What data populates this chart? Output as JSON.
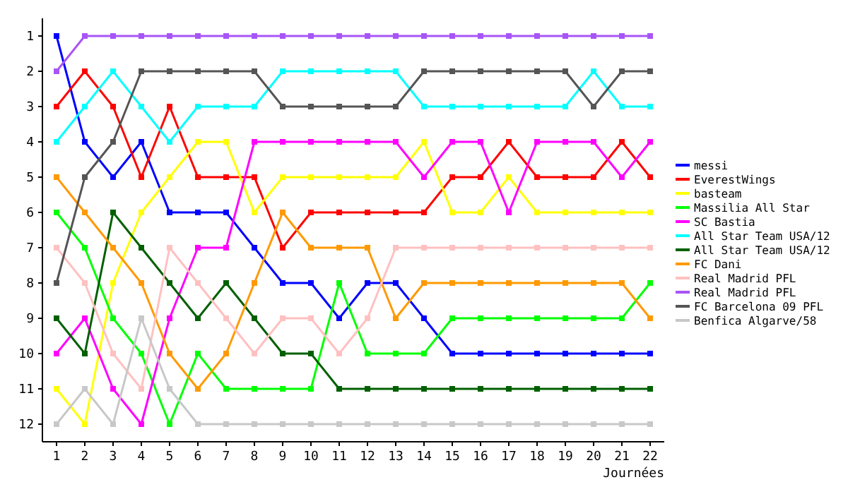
{
  "chart_data": {
    "type": "line",
    "xlabel": "Journées",
    "x": [
      1,
      2,
      3,
      4,
      5,
      6,
      7,
      8,
      9,
      10,
      11,
      12,
      13,
      14,
      15,
      16,
      17,
      18,
      19,
      20,
      21,
      22
    ],
    "xlim": [
      0.5,
      22.5
    ],
    "xticks": [
      1,
      2,
      3,
      4,
      5,
      6,
      7,
      8,
      9,
      10,
      11,
      12,
      13,
      14,
      15,
      16,
      17,
      18,
      19,
      20,
      21,
      22
    ],
    "ylim": [
      12.5,
      0.5
    ],
    "yticks": [
      1,
      2,
      3,
      4,
      5,
      6,
      7,
      8,
      9,
      10,
      11,
      12
    ],
    "grid": false,
    "legend": "right",
    "marker": "square",
    "line_style": "solid",
    "series": [
      {
        "name": "messi",
        "color": "#0000ff",
        "values": [
          1,
          4,
          5,
          4,
          6,
          6,
          6,
          7,
          8,
          8,
          9,
          8,
          8,
          9,
          10,
          10,
          10,
          10,
          10,
          10,
          10,
          10
        ]
      },
      {
        "name": "EverestWings",
        "color": "#ff0000",
        "values": [
          3,
          2,
          3,
          5,
          3,
          5,
          5,
          5,
          7,
          6,
          6,
          6,
          6,
          6,
          5,
          5,
          4,
          5,
          5,
          5,
          4,
          5
        ]
      },
      {
        "name": "basteam",
        "color": "#ffff00",
        "values": [
          11,
          12,
          8,
          6,
          5,
          4,
          4,
          6,
          5,
          5,
          5,
          5,
          5,
          4,
          6,
          6,
          5,
          6,
          6,
          6,
          6,
          6
        ]
      },
      {
        "name": "Massilia All Star",
        "color": "#00ff00",
        "values": [
          6,
          7,
          9,
          10,
          12,
          10,
          11,
          11,
          11,
          11,
          8,
          10,
          10,
          10,
          9,
          9,
          9,
          9,
          9,
          9,
          9,
          8
        ]
      },
      {
        "name": "SC Bastia",
        "color": "#ff00ff",
        "values": [
          10,
          9,
          11,
          12,
          9,
          7,
          7,
          4,
          4,
          4,
          4,
          4,
          4,
          5,
          4,
          4,
          6,
          4,
          4,
          4,
          5,
          4
        ]
      },
      {
        "name": "All Star Team USA/12",
        "color": "#00ffff",
        "values": [
          4,
          3,
          2,
          3,
          4,
          3,
          3,
          3,
          2,
          2,
          2,
          2,
          2,
          3,
          3,
          3,
          3,
          3,
          3,
          2,
          3,
          3
        ]
      },
      {
        "name": "All Star Team USA/12",
        "color": "#006000",
        "values": [
          9,
          10,
          6,
          7,
          8,
          9,
          8,
          9,
          10,
          10,
          11,
          11,
          11,
          11,
          11,
          11,
          11,
          11,
          11,
          11,
          11,
          11
        ]
      },
      {
        "name": "FC Dani",
        "color": "#ff9900",
        "values": [
          5,
          6,
          7,
          8,
          10,
          11,
          10,
          8,
          6,
          7,
          7,
          7,
          9,
          8,
          8,
          8,
          8,
          8,
          8,
          8,
          8,
          9
        ]
      },
      {
        "name": "Real Madrid PFL",
        "color": "#ffc0c0",
        "values": [
          7,
          8,
          10,
          11,
          7,
          8,
          9,
          10,
          9,
          9,
          10,
          9,
          7,
          7,
          7,
          7,
          7,
          7,
          7,
          7,
          7,
          7
        ]
      },
      {
        "name": "Real Madrid PFL",
        "color": "#a855f7",
        "values": [
          2,
          1,
          1,
          1,
          1,
          1,
          1,
          1,
          1,
          1,
          1,
          1,
          1,
          1,
          1,
          1,
          1,
          1,
          1,
          1,
          1,
          1
        ]
      },
      {
        "name": "FC Barcelona 09 PFL",
        "color": "#555555",
        "values": [
          8,
          5,
          4,
          2,
          2,
          2,
          2,
          2,
          3,
          3,
          3,
          3,
          3,
          2,
          2,
          2,
          2,
          2,
          2,
          3,
          2,
          2
        ]
      },
      {
        "name": "Benfica Algarve/58",
        "color": "#c8c8c8",
        "values": [
          12,
          11,
          12,
          9,
          11,
          12,
          12,
          12,
          12,
          12,
          12,
          12,
          12,
          12,
          12,
          12,
          12,
          12,
          12,
          12,
          12,
          12
        ]
      }
    ]
  }
}
